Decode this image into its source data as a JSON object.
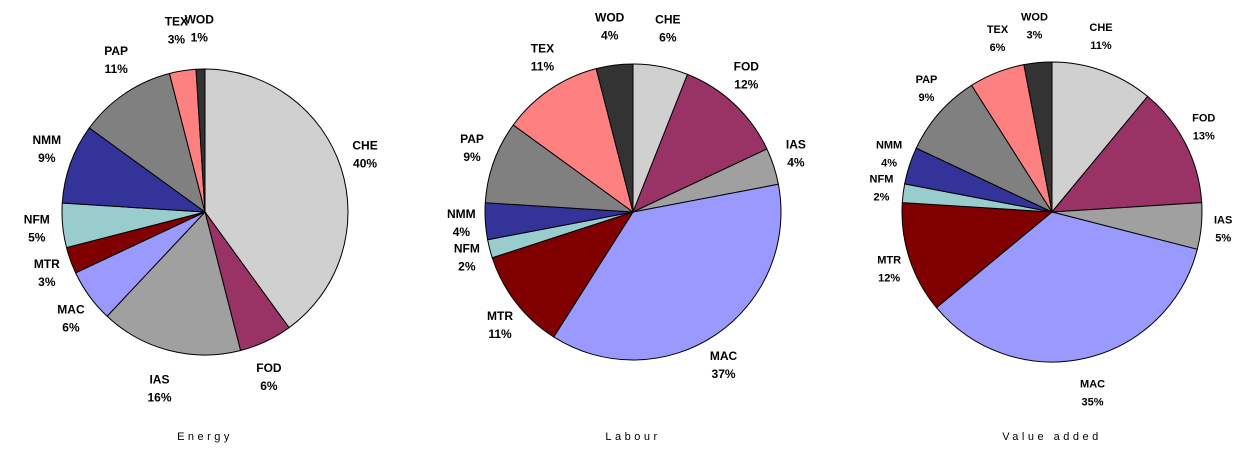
{
  "chart_data": [
    {
      "type": "pie",
      "title": "Energy",
      "categories": [
        "CHE",
        "FOD",
        "IAS",
        "MAC",
        "MTR",
        "NFM",
        "NMM",
        "PAP",
        "TEX",
        "WOD"
      ],
      "values": [
        40,
        6,
        16,
        6,
        3,
        5,
        9,
        11,
        3,
        1
      ],
      "value_labels": [
        "40%",
        "6%",
        "16%",
        "6%",
        "3%",
        "5%",
        "9%",
        "11%",
        "3%",
        "1%"
      ],
      "colors": [
        "#d0d0d0",
        "#993366",
        "#a0a0a0",
        "#9999ff",
        "#800000",
        "#99cccc",
        "#333399",
        "#808080",
        "#ff8080",
        "#333333"
      ]
    },
    {
      "type": "pie",
      "title": "Labour",
      "categories": [
        "CHE",
        "FOD",
        "IAS",
        "MAC",
        "MTR",
        "NFM",
        "NMM",
        "PAP",
        "TEX",
        "WOD"
      ],
      "values": [
        6,
        12,
        4,
        37,
        11,
        2,
        4,
        9,
        11,
        4
      ],
      "value_labels": [
        "6%",
        "12%",
        "4%",
        "37%",
        "11%",
        "2%",
        "4%",
        "9%",
        "11%",
        "4%"
      ],
      "colors": [
        "#d0d0d0",
        "#993366",
        "#a0a0a0",
        "#9999ff",
        "#800000",
        "#99cccc",
        "#333399",
        "#808080",
        "#ff8080",
        "#333333"
      ]
    },
    {
      "type": "pie",
      "title": "Value added",
      "categories": [
        "CHE",
        "FOD",
        "IAS",
        "MAC",
        "MTR",
        "NFM",
        "NMM",
        "PAP",
        "TEX",
        "WOD"
      ],
      "values": [
        11,
        13,
        5,
        35,
        12,
        2,
        4,
        9,
        6,
        3
      ],
      "value_labels": [
        "11%",
        "13%",
        "5%",
        "35%",
        "12%",
        "2%",
        "4%",
        "9%",
        "6%",
        "3%"
      ],
      "colors": [
        "#d0d0d0",
        "#993366",
        "#a0a0a0",
        "#9999ff",
        "#800000",
        "#99cccc",
        "#333399",
        "#808080",
        "#ff8080",
        "#333333"
      ]
    }
  ]
}
